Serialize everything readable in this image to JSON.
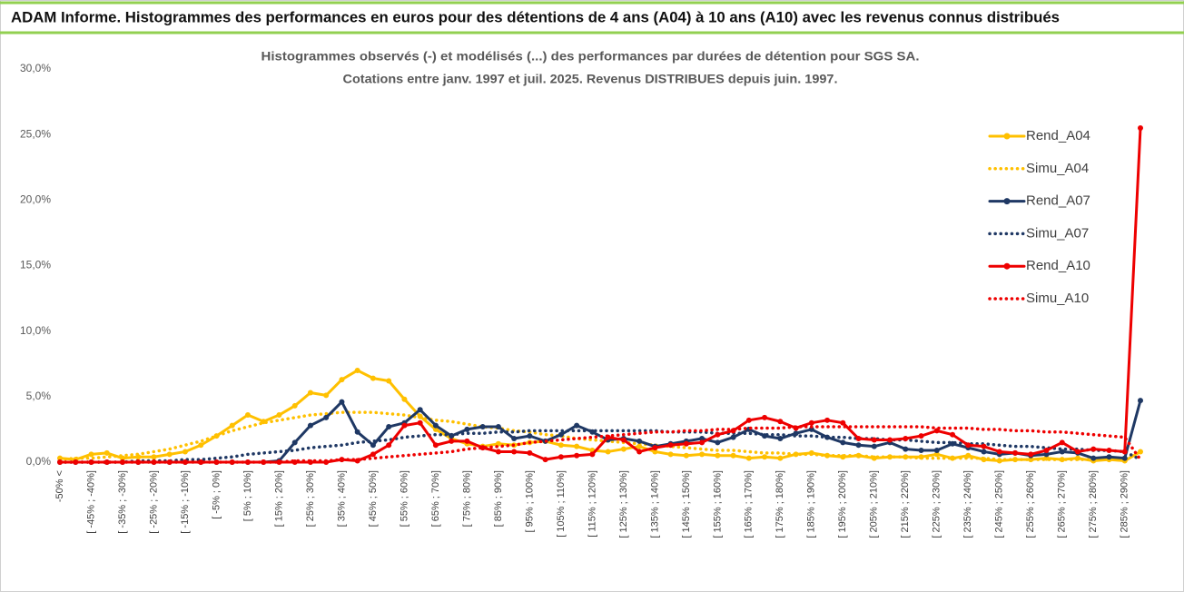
{
  "chart_data": {
    "type": "line",
    "title": "ADAM Informe. Histogrammes des performances en euros pour des détentions de 4 ans (A04) à 10 ans (A10) avec les revenus connus distribués",
    "subtitle": [
      "Histogrammes observés (-) et modélisés (...) des performances par durées de détention pour SGS SA.",
      "Cotations entre janv. 1997 et juil. 2025. Revenus DISTRIBUES depuis juin. 1997."
    ],
    "categories": [
      "-50% <",
      null,
      "[ -45% ; -40%]",
      null,
      "[ -35% ; -30%]",
      null,
      "[ -25% ; -20%]",
      null,
      "[ -15% ; -10%]",
      null,
      "[ -5% ; 0%]",
      null,
      "[ 5% ; 10%]",
      null,
      "[ 15% ; 20%]",
      null,
      "[ 25% ; 30%]",
      null,
      "[ 35% ; 40%]",
      null,
      "[ 45% ; 50%]",
      null,
      "[ 55% ; 60%]",
      null,
      "[ 65% ; 70%]",
      null,
      "[ 75% ; 80%]",
      null,
      "[ 85% ; 90%]",
      null,
      "[ 95% ; 100%]",
      null,
      "[ 105% ; 110%]",
      null,
      "[ 115% ; 120%]",
      null,
      "[ 125% ; 130%]",
      null,
      "[ 135% ; 140%]",
      null,
      "[ 145% ; 150%]",
      null,
      "[ 155% ; 160%]",
      null,
      "[ 165% ; 170%]",
      null,
      "[ 175% ; 180%]",
      null,
      "[ 185% ; 190%]",
      null,
      "[ 195% ; 200%]",
      null,
      "[ 205% ; 210%]",
      null,
      "[ 215% ; 220%]",
      null,
      "[ 225% ; 230%]",
      null,
      "[ 235% ; 240%]",
      null,
      "[ 245% ; 250%]",
      null,
      "[ 255% ; 260%]",
      null,
      "[ 265% ; 270%]",
      null,
      "[ 275% ; 280%]",
      null,
      "[ 285% ; 290%]",
      null
    ],
    "series": [
      {
        "name": "Rend_A04",
        "color": "#ffc000",
        "style": "solid",
        "values": [
          0.3,
          0.2,
          0.6,
          0.7,
          0.3,
          0.4,
          0.4,
          0.6,
          0.8,
          1.3,
          2.0,
          2.8,
          3.6,
          3.1,
          3.6,
          4.3,
          5.3,
          5.1,
          6.3,
          7.0,
          6.4,
          6.2,
          4.8,
          3.5,
          2.5,
          1.8,
          1.4,
          1.2,
          1.4,
          1.3,
          1.5,
          1.6,
          1.3,
          1.2,
          0.9,
          0.8,
          1.0,
          1.2,
          0.8,
          0.6,
          0.5,
          0.6,
          0.5,
          0.5,
          0.3,
          0.4,
          0.3,
          0.6,
          0.7,
          0.5,
          0.4,
          0.5,
          0.3,
          0.4,
          0.4,
          0.4,
          0.6,
          0.3,
          0.5,
          0.2,
          0.1,
          0.2,
          0.2,
          0.3,
          0.2,
          0.3,
          0.1,
          0.2,
          0.1,
          0.8
        ]
      },
      {
        "name": "Simu_A04",
        "color": "#ffc000",
        "style": "dotted",
        "values": [
          0.2,
          0.3,
          0.3,
          0.4,
          0.5,
          0.6,
          0.8,
          1.0,
          1.3,
          1.6,
          2.0,
          2.4,
          2.7,
          3.0,
          3.2,
          3.4,
          3.6,
          3.7,
          3.8,
          3.8,
          3.8,
          3.7,
          3.6,
          3.4,
          3.2,
          3.1,
          2.9,
          2.7,
          2.6,
          2.4,
          2.3,
          2.1,
          2.0,
          1.8,
          1.7,
          1.6,
          1.5,
          1.4,
          1.3,
          1.2,
          1.1,
          1.0,
          0.9,
          0.9,
          0.8,
          0.7,
          0.7,
          0.6,
          0.6,
          0.5,
          0.5,
          0.5,
          0.4,
          0.4,
          0.4,
          0.3,
          0.3,
          0.3,
          0.3,
          0.3,
          0.2,
          0.2,
          0.2,
          0.2,
          0.2,
          0.2,
          0.2,
          0.2,
          0.2,
          0.8
        ]
      },
      {
        "name": "Rend_A07",
        "color": "#1f3864",
        "style": "solid",
        "values": [
          0,
          0,
          0,
          0,
          0,
          0,
          0,
          0,
          0,
          0,
          0,
          0,
          0,
          0,
          0.1,
          1.5,
          2.8,
          3.4,
          4.6,
          2.3,
          1.3,
          2.7,
          3.0,
          4.0,
          2.8,
          2.0,
          2.5,
          2.7,
          2.7,
          1.8,
          2.0,
          1.6,
          2.1,
          2.8,
          2.3,
          1.7,
          1.8,
          1.6,
          1.2,
          1.4,
          1.6,
          1.8,
          1.5,
          1.9,
          2.5,
          2.0,
          1.8,
          2.2,
          2.5,
          1.9,
          1.5,
          1.3,
          1.2,
          1.5,
          1.0,
          0.9,
          0.9,
          1.4,
          1.1,
          0.8,
          0.6,
          0.7,
          0.5,
          0.6,
          0.8,
          0.7,
          0.3,
          0.4,
          0.3,
          4.7
        ]
      },
      {
        "name": "Simu_A07",
        "color": "#1f3864",
        "style": "dotted",
        "values": [
          0,
          0,
          0,
          0,
          0,
          0.1,
          0.1,
          0.1,
          0.2,
          0.2,
          0.3,
          0.4,
          0.6,
          0.7,
          0.8,
          0.9,
          1.1,
          1.2,
          1.3,
          1.5,
          1.6,
          1.7,
          1.9,
          2.0,
          2.1,
          2.1,
          2.2,
          2.2,
          2.3,
          2.3,
          2.4,
          2.4,
          2.4,
          2.4,
          2.4,
          2.4,
          2.4,
          2.4,
          2.4,
          2.3,
          2.3,
          2.3,
          2.2,
          2.2,
          2.2,
          2.1,
          2.1,
          2.0,
          2.0,
          1.9,
          1.9,
          1.8,
          1.8,
          1.7,
          1.7,
          1.6,
          1.5,
          1.5,
          1.4,
          1.4,
          1.3,
          1.2,
          1.2,
          1.1,
          1.0,
          1.0,
          0.9,
          0.9,
          0.8,
          0.2
        ]
      },
      {
        "name": "Rend_A10",
        "color": "#ee0000",
        "style": "solid",
        "values": [
          0,
          0,
          0,
          0,
          0,
          0,
          0,
          0,
          0,
          0,
          0,
          0,
          0,
          0,
          0,
          0,
          0,
          0,
          0.2,
          0.1,
          0.6,
          1.3,
          2.8,
          3.0,
          1.3,
          1.6,
          1.6,
          1.1,
          0.8,
          0.8,
          0.7,
          0.2,
          0.4,
          0.5,
          0.6,
          1.9,
          1.7,
          0.8,
          1.1,
          1.3,
          1.4,
          1.5,
          2.1,
          2.4,
          3.2,
          3.4,
          3.1,
          2.6,
          3.0,
          3.2,
          3.0,
          1.8,
          1.7,
          1.7,
          1.8,
          2.0,
          2.4,
          2.1,
          1.3,
          1.2,
          0.8,
          0.7,
          0.6,
          0.9,
          1.5,
          0.8,
          1.0,
          0.9,
          0.8,
          25.5
        ]
      },
      {
        "name": "Simu_A10",
        "color": "#ee0000",
        "style": "dotted",
        "values": [
          0,
          0,
          0,
          0,
          0,
          0,
          0,
          0,
          0,
          0,
          0,
          0,
          0,
          0,
          0,
          0.1,
          0.1,
          0.1,
          0.2,
          0.2,
          0.3,
          0.4,
          0.5,
          0.6,
          0.7,
          0.8,
          1.0,
          1.1,
          1.2,
          1.3,
          1.5,
          1.6,
          1.7,
          1.8,
          1.9,
          2.0,
          2.1,
          2.2,
          2.3,
          2.3,
          2.4,
          2.4,
          2.5,
          2.5,
          2.6,
          2.6,
          2.6,
          2.7,
          2.7,
          2.7,
          2.7,
          2.7,
          2.7,
          2.7,
          2.7,
          2.7,
          2.6,
          2.6,
          2.6,
          2.5,
          2.5,
          2.4,
          2.4,
          2.3,
          2.3,
          2.2,
          2.1,
          2.0,
          1.9,
          0.2
        ]
      }
    ],
    "ylim": [
      0,
      30
    ],
    "yticks": [
      {
        "value": 0,
        "label": "0,0%"
      },
      {
        "value": 5,
        "label": "5,0%"
      },
      {
        "value": 10,
        "label": "10,0%"
      },
      {
        "value": 15,
        "label": "15,0%"
      },
      {
        "value": 20,
        "label": "20,0%"
      },
      {
        "value": 25,
        "label": "25,0%"
      },
      {
        "value": 30,
        "label": "30,0%"
      }
    ],
    "grid": false,
    "legend": "right"
  }
}
